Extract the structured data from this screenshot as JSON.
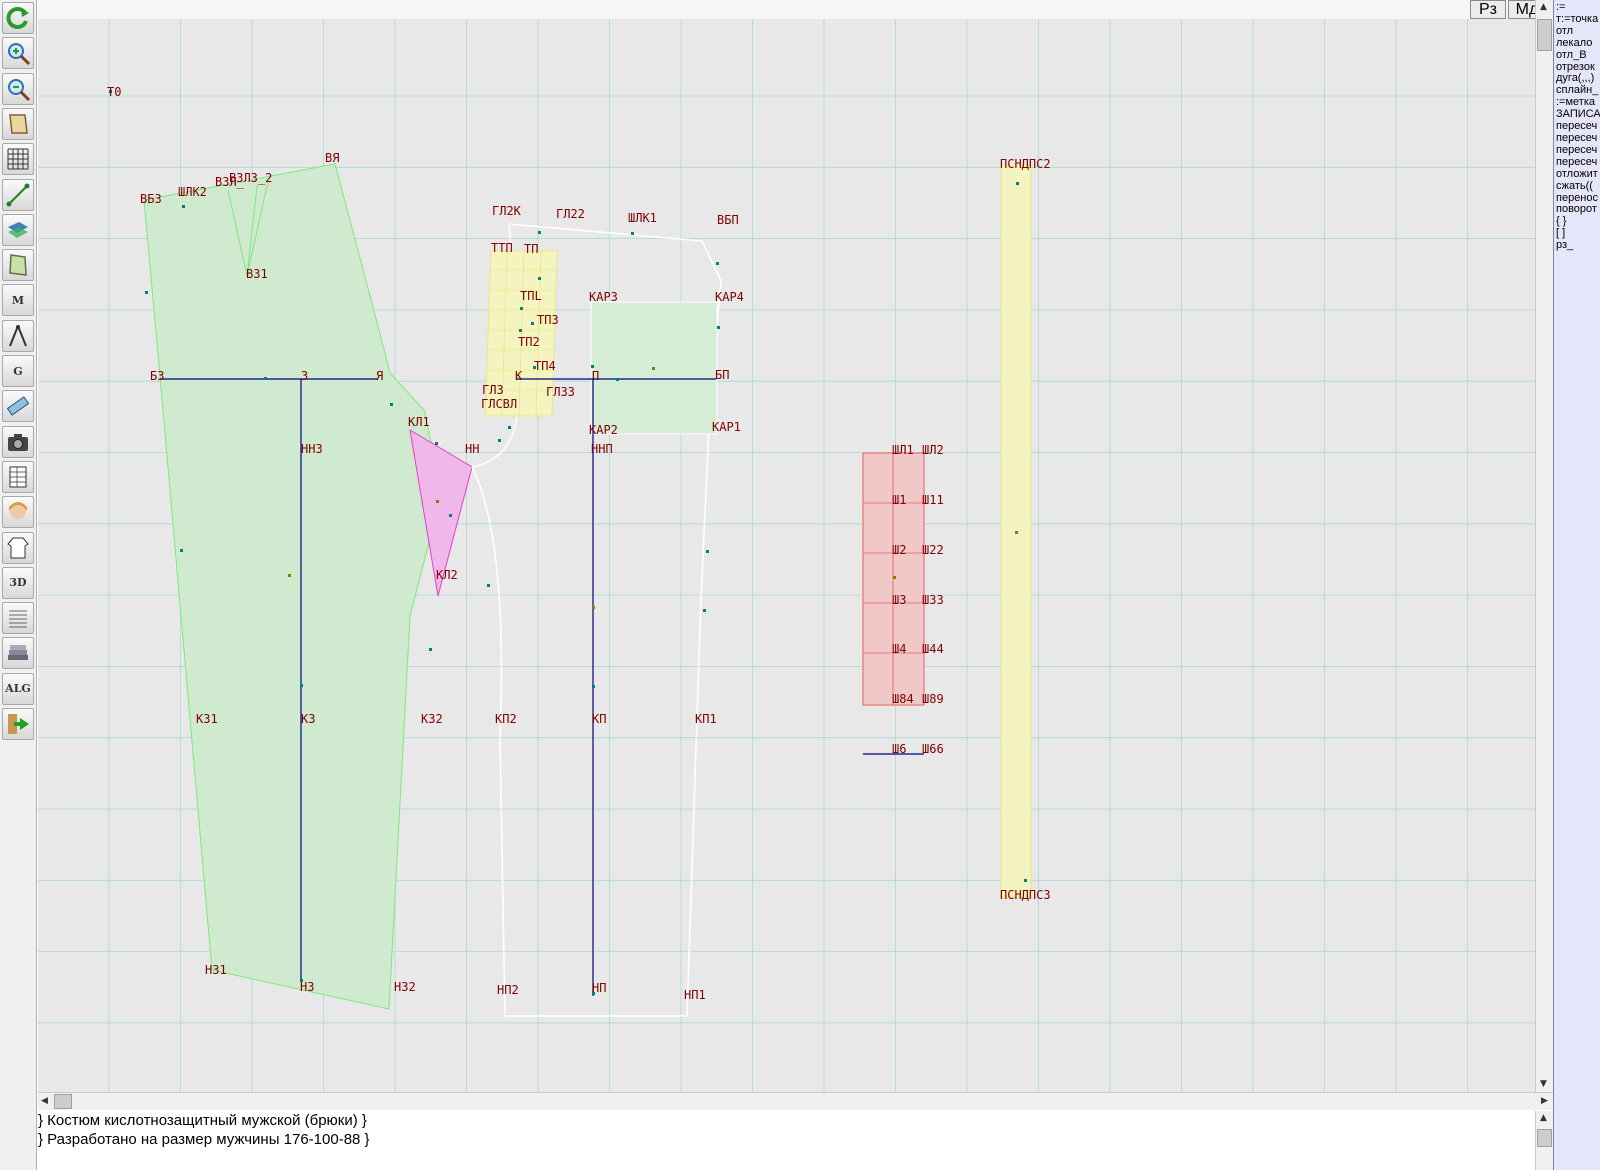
{
  "toolbar": {
    "tools": [
      {
        "icon": "refresh-icon",
        "label": ""
      },
      {
        "icon": "zoom-in-icon",
        "label": ""
      },
      {
        "icon": "zoom-out-icon",
        "label": ""
      },
      {
        "icon": "pattern-icon",
        "label": ""
      },
      {
        "icon": "grid-icon",
        "label": ""
      },
      {
        "icon": "line-tool-icon",
        "label": ""
      },
      {
        "icon": "layers-icon",
        "label": ""
      },
      {
        "icon": "piece-icon",
        "label": ""
      },
      {
        "icon": "measure-m-icon",
        "label": "M"
      },
      {
        "icon": "compass-icon",
        "label": ""
      },
      {
        "icon": "grading-g-icon",
        "label": "G"
      },
      {
        "icon": "ruler-icon",
        "label": ""
      },
      {
        "icon": "camera-icon",
        "label": ""
      },
      {
        "icon": "spreadsheet-icon",
        "label": ""
      },
      {
        "icon": "avatar-icon",
        "label": ""
      },
      {
        "icon": "garment-icon",
        "label": ""
      },
      {
        "icon": "3d-view-icon",
        "label": "3D"
      },
      {
        "icon": "document-icon",
        "label": ""
      },
      {
        "icon": "books-icon",
        "label": ""
      },
      {
        "icon": "algorithm-icon",
        "label": "ALG"
      },
      {
        "icon": "exit-icon",
        "label": ""
      }
    ]
  },
  "top_buttons": {
    "rz": "Рз",
    "md": "Мд"
  },
  "command_panel": {
    "items": [
      ":=",
      "т:=точка",
      "отл",
      "лекало",
      "отл_В",
      "отрезок",
      "дуга(,,,)",
      "сплайн_",
      ":=метка",
      "ЗАПИСА",
      "пересеч",
      "пересеч",
      "пересеч",
      "пересеч",
      "отложит",
      "сжать((",
      "перенос",
      "поворот",
      "{ }",
      "[ ]",
      "рз_"
    ]
  },
  "status_text": {
    "line1": "} Костюм кислотнозащитный мужской (брюки) }",
    "line2": "} Разработано на размер мужчины 176-100-88 }"
  },
  "colors": {
    "canvas_bg": "#e8e8e8",
    "grid": "#a8d8d0",
    "green_fill": "#cfeacf",
    "green_stroke": "#7de87d",
    "pink_fill": "#f0b8e8",
    "pink_stroke": "#e040d0",
    "yellow_fill": "#f4f4c0",
    "yellow_stroke": "#e8e880",
    "red_fill": "#f0c8c8",
    "red_stroke": "#e86060",
    "blue_line": "#000080",
    "white_line": "#ffffff",
    "label": "#800000",
    "command_bg": "#e6e6fa"
  },
  "labels": {
    "T0": "Т0",
    "VB3": "ВБ3",
    "SHLK2": "ШЛК2",
    "V3L3_2": "В3Л3_2",
    "VZL": "В3Л_",
    "VYA": "ВЯ",
    "VZ1": "ВЗ1",
    "BZ": "БЗ",
    "Z": "З",
    "YA": "Я",
    "KL1": "КЛ1",
    "NN": "НН",
    "NNZ": "ННЗ",
    "KL2": "КЛ2",
    "KZ1": "КЗ1",
    "KZ": "КЗ",
    "KZ2": "КЗ2",
    "NZ1": "НЗ1",
    "NZ": "НЗ",
    "NZ2": "НЗ2",
    "GL22": "ГЛ22",
    "GL2K": "ГЛ2К",
    "SHLK1": "ШЛК1",
    "VBP": "ВБП",
    "TTP": "ТТП",
    "TP": "ТП",
    "TPL": "ТПL",
    "TP3": "ТП3",
    "TP2": "ТП2",
    "TP4": "ТП4",
    "GL3": "ГЛ3",
    "GLCBL": "ГЛСВЛ",
    "GL33": "ГЛ33",
    "K": "К",
    "P": "П",
    "BP": "БП",
    "KAR3": "КАР3",
    "KAR4": "КАР4",
    "KAR2": "КАР2",
    "KAR1": "КАР1",
    "NNP": "ННП",
    "KP2": "КП2",
    "KP": "КП",
    "KP1": "КП1",
    "NP2": "НП2",
    "NP": "НП",
    "NP1": "НП1",
    "SHL1": "ШЛ1",
    "SHL2": "ШЛ2",
    "SH1": "Ш1",
    "SH11": "Ш11",
    "SH2": "Ш2",
    "SH22": "Ш22",
    "SH3": "Ш3",
    "SH33": "Ш33",
    "SH4": "Ш4",
    "SH44": "Ш44",
    "SH84": "Ш84",
    "SH89": "Ш89",
    "SH6": "Ш6",
    "SH66": "Ш66",
    "POND2": "ПСНДПС2",
    "POND3": "ПСНДПС3"
  }
}
